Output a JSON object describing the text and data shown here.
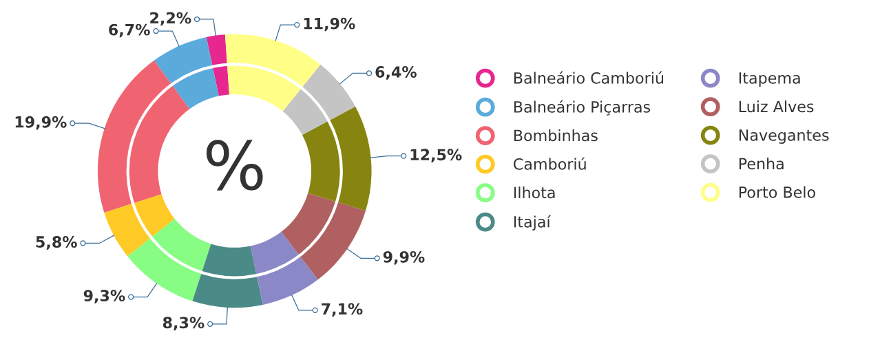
{
  "chart_data": {
    "type": "donut",
    "categories": [
      "Balneário Camboriú",
      "Balneário Piçarras",
      "Bombinhas",
      "Camboriú",
      "Ilhota",
      "Itajaí",
      "Itapema",
      "Luiz Alves",
      "Navegantes",
      "Penha",
      "Porto Belo"
    ],
    "values": [
      2.2,
      6.7,
      19.9,
      5.8,
      9.3,
      8.3,
      7.1,
      9.9,
      12.5,
      6.4,
      11.9
    ],
    "colors": [
      "#e8268f",
      "#5aabdc",
      "#f06472",
      "#ffc926",
      "#87fd84",
      "#4a8a87",
      "#8b88c8",
      "#b06060",
      "#87850f",
      "#c4c4c4",
      "#ffff88"
    ],
    "value_labels": [
      "2,2%",
      "6,7%",
      "19,9%",
      "5,8%",
      "9,3%",
      "8,3%",
      "7,1%",
      "9,9%",
      "12,5%",
      "6,4%",
      "11,9%"
    ],
    "annotations": [
      "%"
    ],
    "legend": "right"
  }
}
